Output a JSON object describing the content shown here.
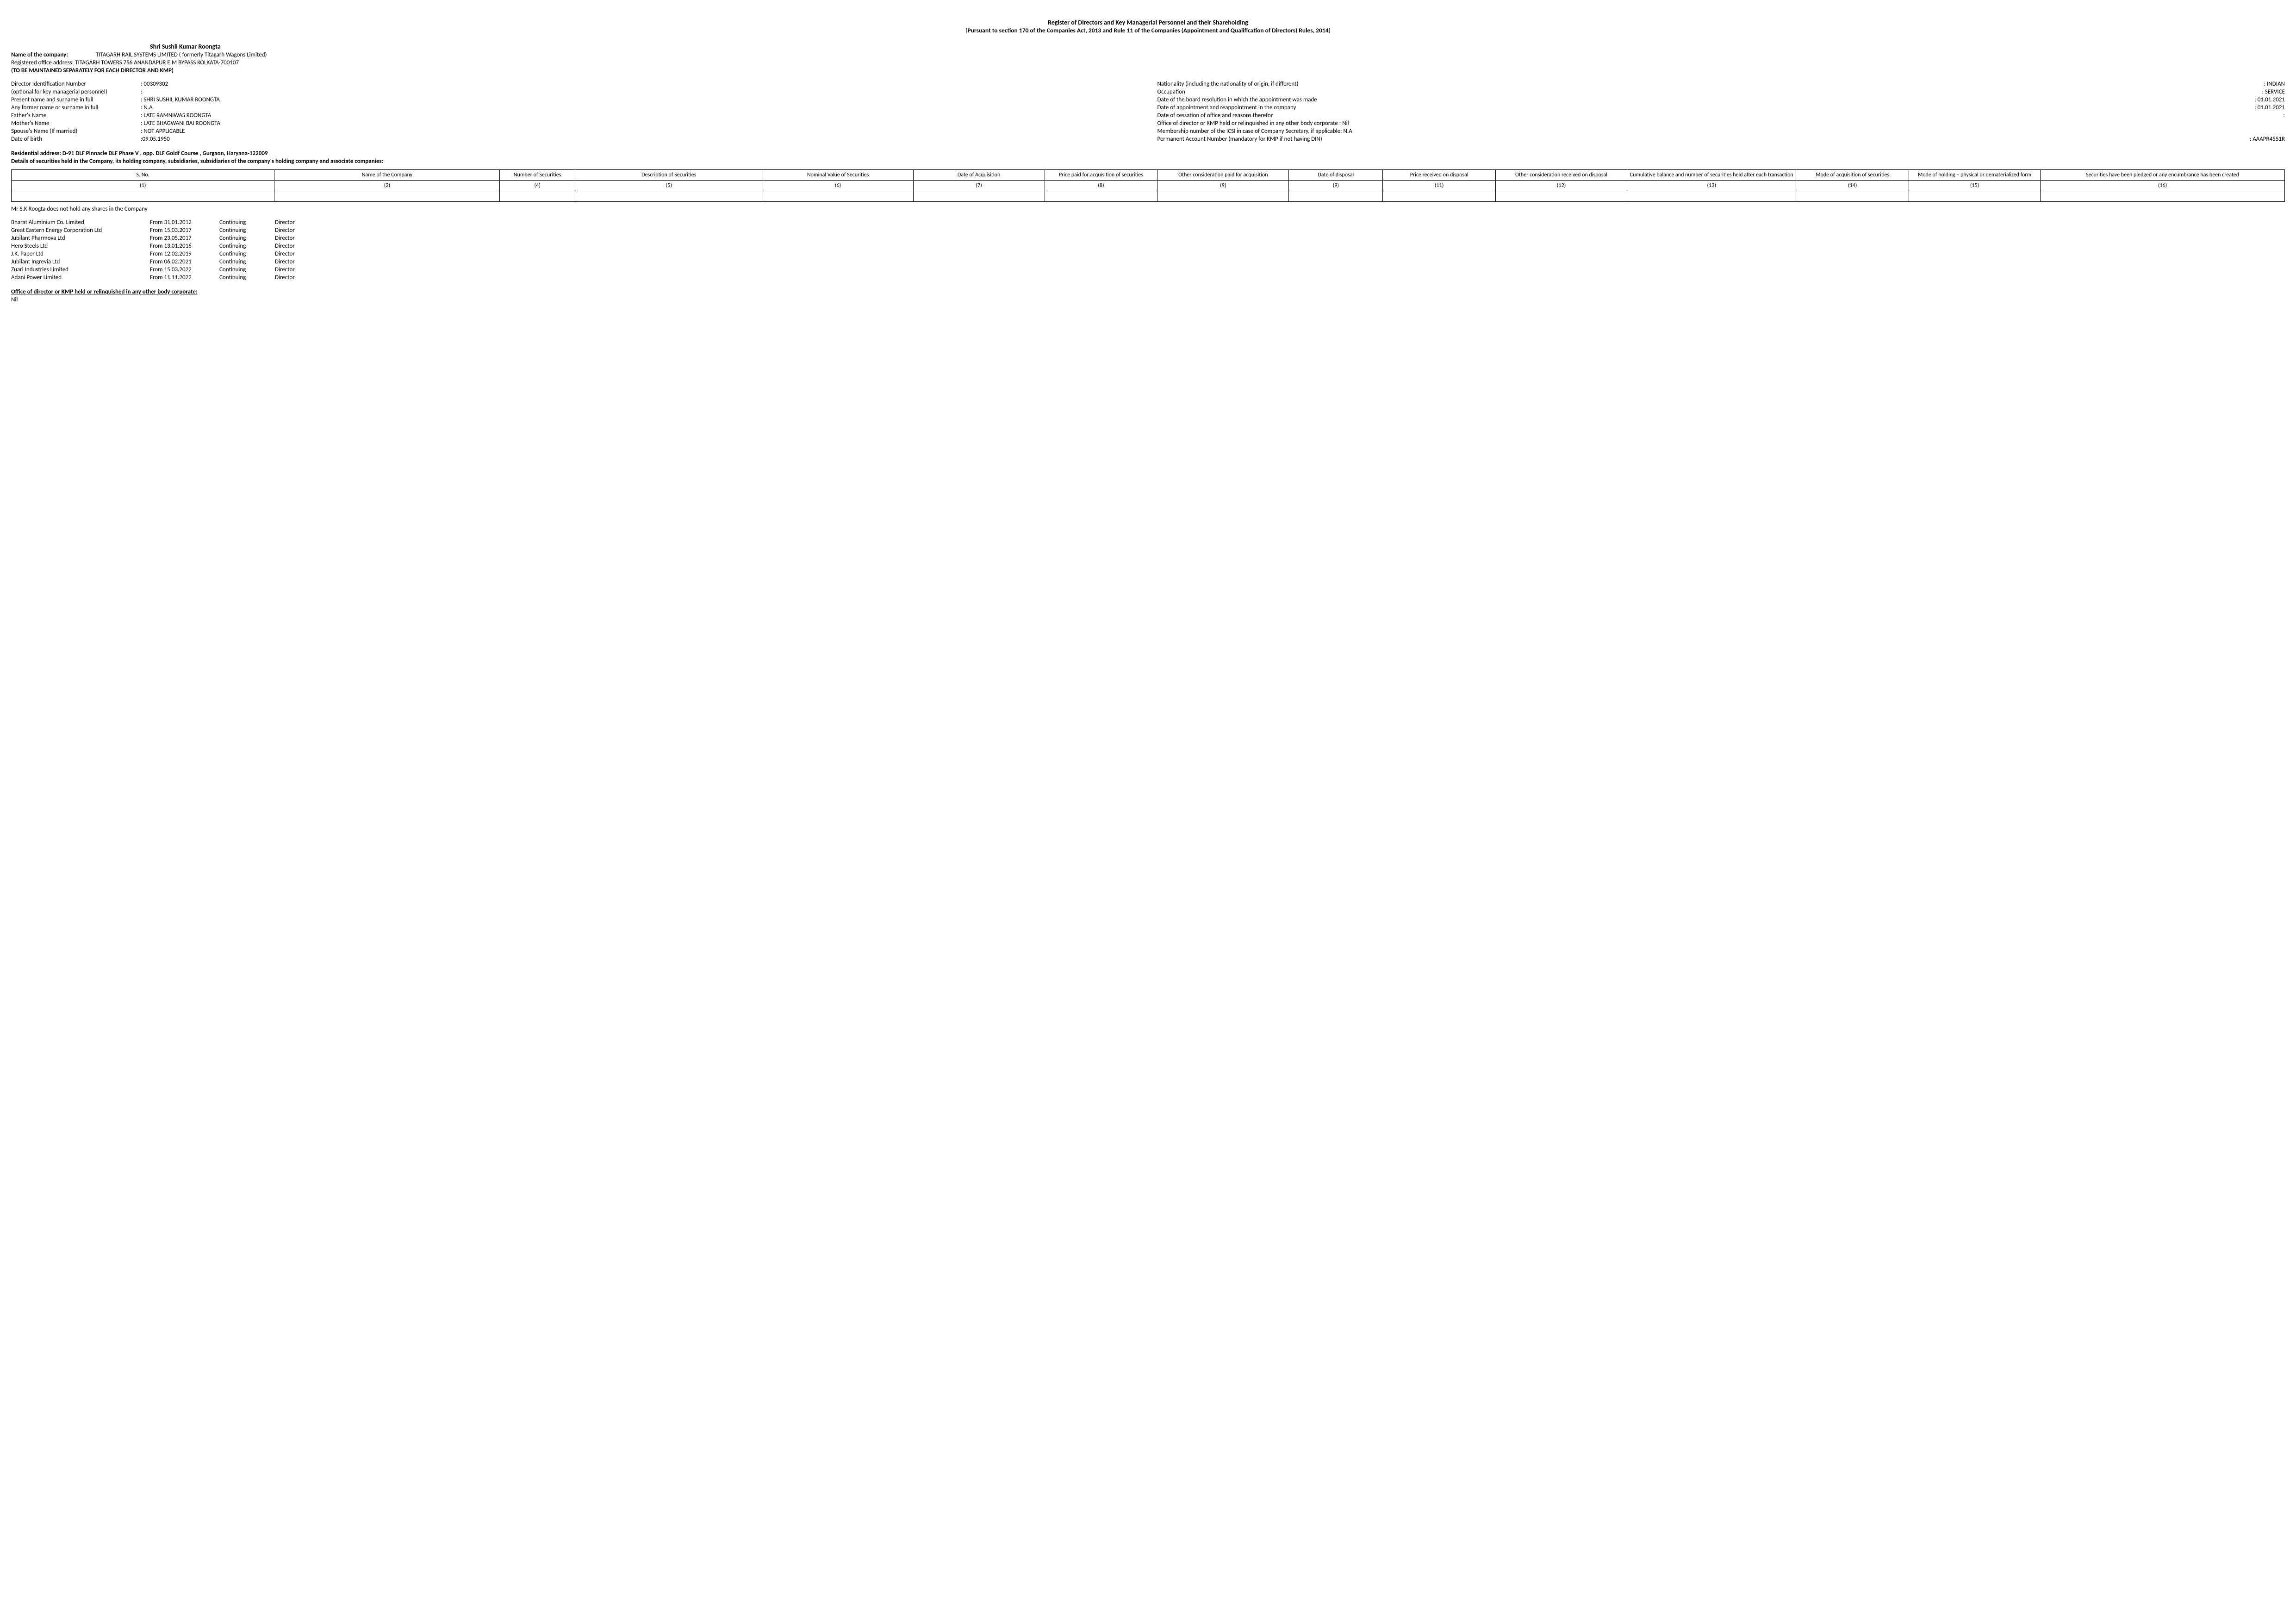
{
  "title": {
    "line1": "Register of Directors and Key Managerial Personnel and their Shareholding",
    "line2": "[Pursuant to section 170 of the Companies Act, 2013 and Rule 11 of the Companies (Appointment and Qualification of Directors) Rules, 2014]"
  },
  "director_subhead": "Shri Sushil Kumar Roongta",
  "company": {
    "label": "Name of the company:",
    "value": "TITAGARH RAIL SYSTEMS  LIMITED ( formerly Titagarh Wagons Limited)"
  },
  "registered_office": "Registered office address: TITAGARH TOWERS 756 ANANDAPUR E.M BYPASS KOLKATA-700107",
  "separate_note": "(TO BE MAINTAINED SEPARATELY FOR EACH DIRECTOR AND KMP)",
  "left_info": [
    {
      "label": "Director Identification Number",
      "value": ":  00309302"
    },
    {
      "label": "(optional for key managerial personnel)",
      "value": ":"
    },
    {
      "label": "Present name and surname in full",
      "value": ": SHRI SUSHIL KUMAR ROONGTA"
    },
    {
      "label": "Any former name or surname in full",
      "value": ": N.A"
    },
    {
      "label": "Father's Name",
      "value": ": LATE RAMNIWAS ROONGTA"
    },
    {
      "label": "Mother's Name",
      "value": ": LATE BHAGWANI BAI ROONGTA"
    },
    {
      "label": "Spouse's Name (If married)",
      "value": ": NOT APPLICABLE"
    },
    {
      "label": "Date of birth",
      "value": ":09.05.1950"
    }
  ],
  "right_info": [
    {
      "label": "Nationality (including the nationality of origin, if different)",
      "value": ": INDIAN"
    },
    {
      "label": "Occupation",
      "value": ": SERVICE"
    },
    {
      "label": "Date of the board resolution in which the appointment was made",
      "value": ": 01.01.2021"
    },
    {
      "label": "Date of appointment and reappointment in the company",
      "value": ": 01.01.2021"
    },
    {
      "label": "Date of cessation of office and reasons therefor",
      "value": ":"
    },
    {
      "label": "Office of director or KMP held or relinquished in any other body corporate  : Nil",
      "value": ""
    },
    {
      "label": "Membership number of the ICSI in case of Company Secretary, if applicable: N.A",
      "value": ""
    },
    {
      "label": "Permanent Account Number (mandatory for KMP if not having DIN)",
      "value": ": AAAPR4551R"
    }
  ],
  "residential_address": "Residential address: D-91 DLF Pinnacle DLF Phase V , opp. DLF Goldf Course , Gurgaon, Haryana-122009",
  "details_heading": "Details of securities held in the Company, its holding company, subsidiaries, subsidiaries of the company's holding company and associate companies:",
  "securities_table": {
    "col_widths_pct": [
      14,
      12,
      4,
      10,
      8,
      7,
      6,
      7,
      5,
      6,
      7,
      9,
      6,
      7,
      13
    ],
    "headers": [
      "S. No.",
      "Name of the Company",
      "Number of Securities",
      "Description of Securities",
      "Nominal Value of Securities",
      "Date of Acquisition",
      "Price paid for acquisition of securities",
      "Other consideration paid for acquisition",
      "Date of disposal",
      "Price received on disposal",
      "Other consideration received on disposal",
      "Cumulative balance and number of securities held after each transaction",
      "Mode of acquisition of securities",
      "Mode of holding – physical or dematerialized form",
      "Securities have been pledged or any encumbrance has been created"
    ],
    "num_row": [
      "(1)",
      "(2)",
      "(4)",
      "(5)",
      "(6)",
      "(7)",
      "(8)",
      "(9)",
      "(9)",
      "(11)",
      "(12)",
      "(13)",
      "(14)",
      "(15)",
      "(16)"
    ]
  },
  "not_hold": "Mr S.K Roogta  does not hold any shares in the Company",
  "directorships": [
    {
      "company": "Bharat Aluminium Co. Limited",
      "from": "From 31.01.2012",
      "status": "Continuing",
      "role": "Director"
    },
    {
      "company": "Great Eastern Energy Corporation Ltd",
      "from": "From 15.03.2017",
      "status": "Continuing",
      "role": "Director"
    },
    {
      "company": "Jubilant Pharmova Ltd",
      "from": "From 23.05.2017",
      "status": "Continuing",
      "role": "Director"
    },
    {
      "company": "Hero Steels Ltd",
      "from": "From 13.01.2016",
      "status": "Continuing",
      "role": "Director"
    },
    {
      "company": "J.K. Paper Ltd",
      "from": "From 12.02.2019",
      "status": "Continuing",
      "role": "Director"
    },
    {
      "company": "Jubilant Ingrevia Ltd",
      "from": "From 06.02.2021",
      "status": "Continuing",
      "role": "Director"
    },
    {
      "company": "Zuari Industries Limited",
      "from": "From 15.03.2022",
      "status": "Continuing",
      "role": "Director"
    },
    {
      "company": "Adani Power Limited",
      "from": "From 11.11.2022",
      "status": "Continuing",
      "role": "Director"
    }
  ],
  "relinquished": {
    "heading": "Office of director or KMP held or relinquished in any other body corporate:",
    "value": "Nil"
  }
}
